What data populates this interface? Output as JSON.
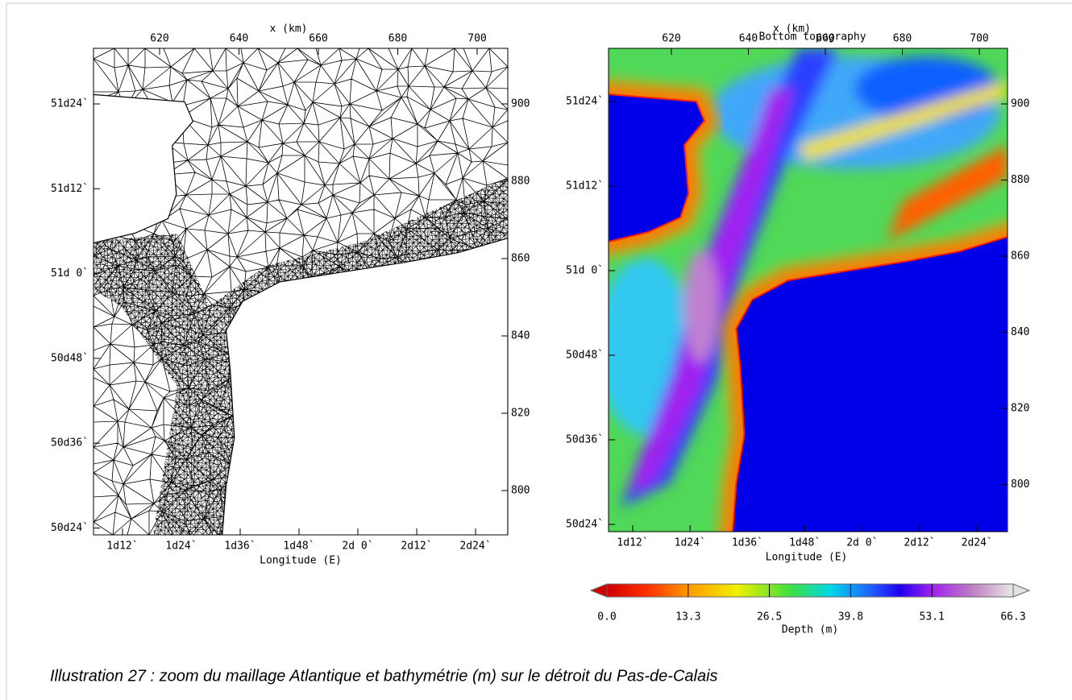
{
  "panels": [
    {
      "x_title": "x (km)",
      "top_ticks": [
        "620",
        "640",
        "660",
        "680",
        "700"
      ],
      "left_ticks": [
        "51d24`",
        "51d12`",
        "51d 0`",
        "50d48`",
        "50d36`",
        "50d24`"
      ],
      "right_ticks": [
        "900",
        "880",
        "860",
        "840",
        "820",
        "800"
      ],
      "bottom_ticks": [
        "1d12`",
        "1d24`",
        "1d36`",
        "1d48`",
        "2d 0`",
        "2d12`",
        "2d24`"
      ],
      "bottom_title": "Longitude (E)"
    },
    {
      "x_title": "x (km)",
      "title": "Bottom topography",
      "top_ticks": [
        "620",
        "640",
        "660",
        "680",
        "700"
      ],
      "left_ticks": [
        "51d24`",
        "51d12`",
        "51d 0`",
        "50d48`",
        "50d36`",
        "50d24`"
      ],
      "right_ticks": [
        "900",
        "880",
        "860",
        "840",
        "820",
        "800"
      ],
      "bottom_ticks": [
        "1d12`",
        "1d24`",
        "1d36`",
        "1d48`",
        "2d 0`",
        "2d12`",
        "2d24`"
      ],
      "bottom_title": "Longitude (E)"
    }
  ],
  "colorbar": {
    "ticks": [
      "0.0",
      "13.3",
      "26.5",
      "39.8",
      "53.1",
      "66.3"
    ],
    "title": "Depth (m)"
  },
  "caption": "Illustration 27 : zoom du maillage Atlantique et bathymétrie (m) sur le détroit du Pas-de-Calais"
}
